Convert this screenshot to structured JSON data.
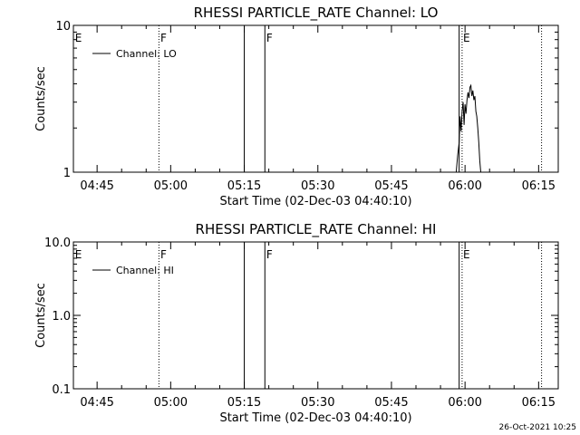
{
  "footer": {
    "timestamp": "26-Oct-2021 10:25"
  },
  "chart_data": [
    {
      "type": "line",
      "title": "RHESSI PARTICLE_RATE Channel: LO",
      "xlabel": "Start Time (02-Dec-03 04:40:10)",
      "ylabel": "Counts/sec",
      "yscale": "log",
      "ylim": [
        1,
        10
      ],
      "xlim_minutes": [
        280.17,
        379.0
      ],
      "x_ticks": [
        "04:45",
        "05:00",
        "05:15",
        "05:30",
        "05:45",
        "06:00",
        "06:15"
      ],
      "y_ticks": [
        "1",
        "10"
      ],
      "legend": {
        "position": "top-left",
        "entries": [
          "Channel: LO"
        ]
      },
      "vlines_solid": [
        315.0,
        319.2,
        358.8
      ],
      "vlines_dotted": [
        297.6,
        359.4,
        375.6
      ],
      "markers": [
        {
          "text": "E",
          "x": 280.5
        },
        {
          "text": "F",
          "x": 297.9
        },
        {
          "text": "F",
          "x": 319.5
        },
        {
          "text": "E",
          "x": 359.6
        }
      ],
      "series": [
        {
          "name": "Channel: LO",
          "points": [
            [
              358.2,
              1.0
            ],
            [
              358.5,
              1.3
            ],
            [
              358.8,
              1.6
            ],
            [
              359.0,
              2.4
            ],
            [
              359.2,
              1.9
            ],
            [
              359.4,
              2.6
            ],
            [
              359.6,
              3.0
            ],
            [
              359.8,
              2.1
            ],
            [
              360.0,
              2.9
            ],
            [
              360.2,
              2.5
            ],
            [
              360.4,
              3.1
            ],
            [
              360.6,
              3.5
            ],
            [
              360.8,
              3.2
            ],
            [
              361.0,
              3.8
            ],
            [
              361.2,
              3.9
            ],
            [
              361.4,
              3.3
            ],
            [
              361.6,
              3.6
            ],
            [
              361.8,
              3.1
            ],
            [
              362.0,
              3.3
            ],
            [
              362.2,
              2.6
            ],
            [
              362.4,
              2.4
            ],
            [
              362.6,
              2.0
            ],
            [
              362.8,
              1.6
            ],
            [
              363.0,
              1.2
            ],
            [
              363.2,
              1.0
            ]
          ]
        }
      ]
    },
    {
      "type": "line",
      "title": "RHESSI PARTICLE_RATE Channel: HI",
      "xlabel": "Start Time (02-Dec-03 04:40:10)",
      "ylabel": "Counts/sec",
      "yscale": "log",
      "ylim": [
        0.1,
        10
      ],
      "xlim_minutes": [
        280.17,
        379.0
      ],
      "x_ticks": [
        "04:45",
        "05:00",
        "05:15",
        "05:30",
        "05:45",
        "06:00",
        "06:15"
      ],
      "y_ticks": [
        "0.1",
        "1.0",
        "10.0"
      ],
      "legend": {
        "position": "top-left",
        "entries": [
          "Channel: HI"
        ]
      },
      "vlines_solid": [
        315.0,
        319.2,
        358.8
      ],
      "vlines_dotted": [
        297.6,
        359.4,
        375.6
      ],
      "markers": [
        {
          "text": "E",
          "x": 280.5
        },
        {
          "text": "F",
          "x": 297.9
        },
        {
          "text": "F",
          "x": 319.5
        },
        {
          "text": "E",
          "x": 359.6
        }
      ],
      "series": [
        {
          "name": "Channel: HI",
          "points": []
        }
      ]
    }
  ]
}
